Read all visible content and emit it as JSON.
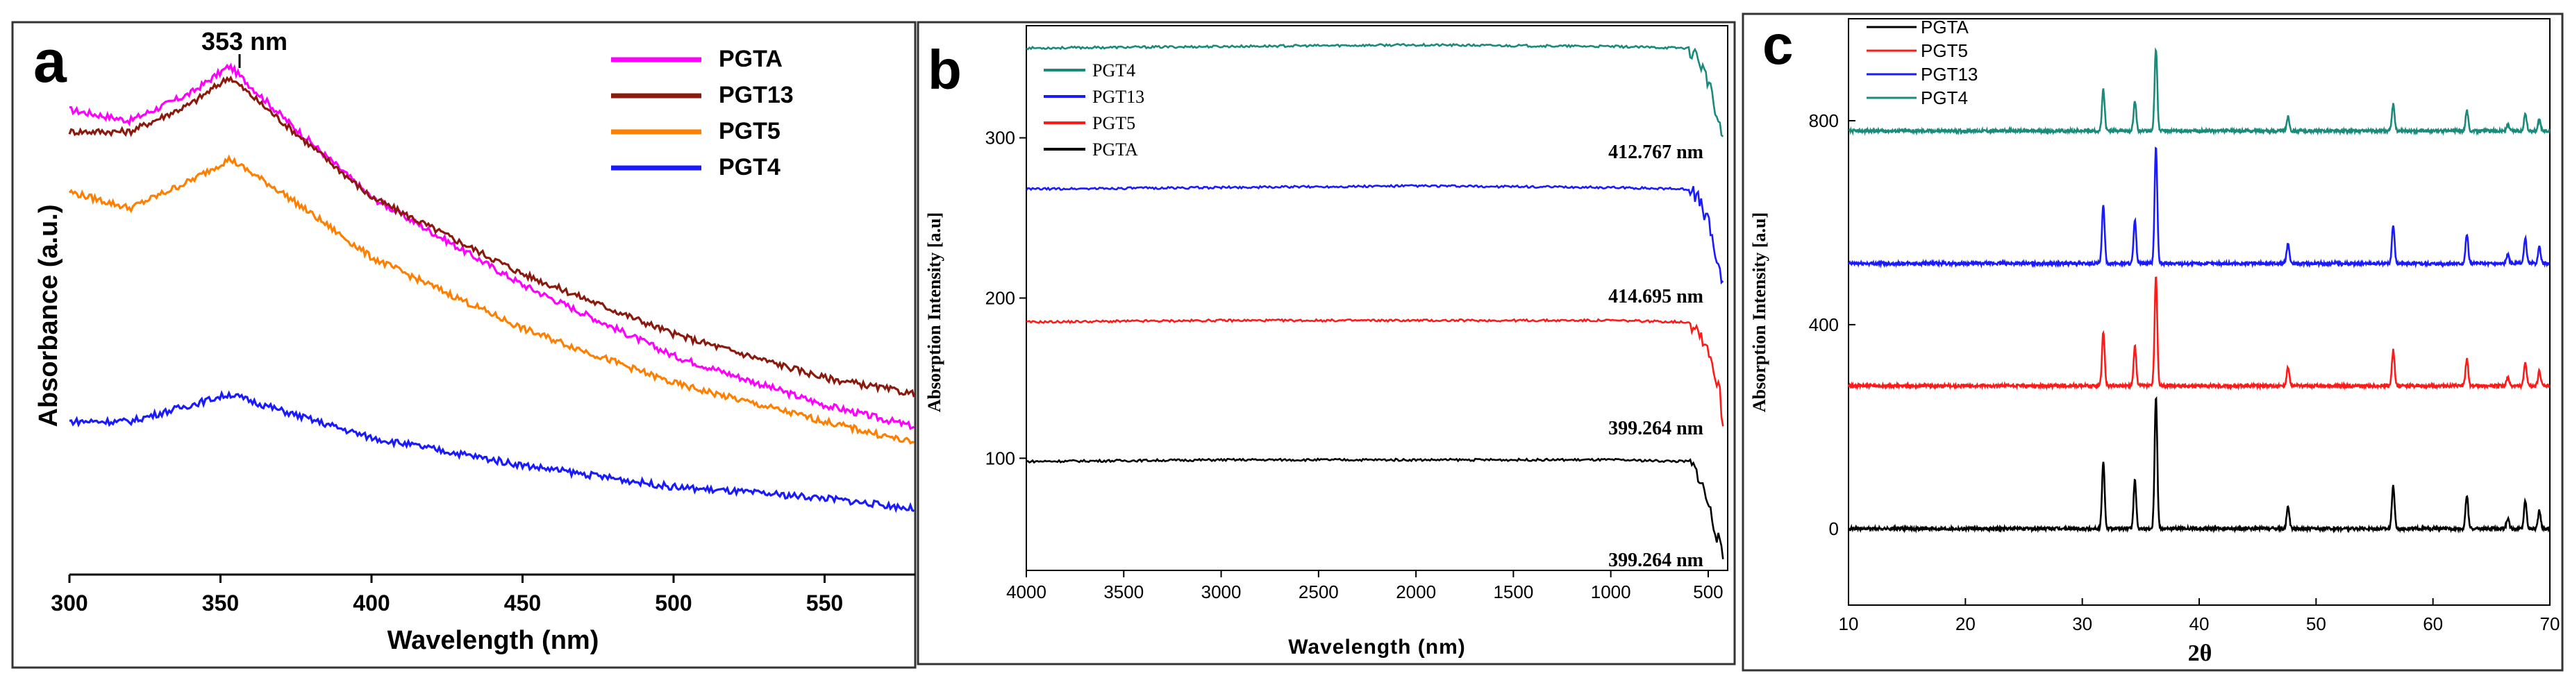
{
  "panels": {
    "a": {
      "letter": "a",
      "peak_annotation": "353 nm"
    },
    "b": {
      "letter": "b"
    },
    "c": {
      "letter": "c"
    }
  },
  "chart_data": [
    {
      "id": "a",
      "type": "line",
      "xlabel": "Wavelength (nm)",
      "ylabel": "Absorbance (a.u.)",
      "xlim": [
        300,
        580
      ],
      "xticks": [
        300,
        350,
        400,
        450,
        500,
        550
      ],
      "ylim": [
        0,
        1
      ],
      "yticks_shown": false,
      "grid": false,
      "legend_position": "top-right",
      "annotations": [
        {
          "text": "353 nm",
          "x": 353
        }
      ],
      "series": [
        {
          "name": "PGTA",
          "color": "#ff00ff",
          "x": [
            300,
            320,
            340,
            353,
            370,
            400,
            450,
            500,
            550,
            580
          ],
          "y": [
            0.85,
            0.83,
            0.88,
            0.93,
            0.84,
            0.69,
            0.53,
            0.4,
            0.31,
            0.27
          ]
        },
        {
          "name": "PGT13",
          "color": "#8b1a0e",
          "x": [
            300,
            320,
            340,
            353,
            370,
            400,
            450,
            500,
            550,
            580
          ],
          "y": [
            0.81,
            0.81,
            0.86,
            0.91,
            0.83,
            0.69,
            0.55,
            0.44,
            0.36,
            0.33
          ]
        },
        {
          "name": "PGT5",
          "color": "#ff7f00",
          "x": [
            300,
            320,
            340,
            353,
            370,
            400,
            450,
            500,
            550,
            580
          ],
          "y": [
            0.7,
            0.67,
            0.72,
            0.76,
            0.7,
            0.58,
            0.45,
            0.35,
            0.28,
            0.24
          ]
        },
        {
          "name": "PGT4",
          "color": "#1a1aff",
          "x": [
            300,
            320,
            340,
            353,
            370,
            400,
            450,
            500,
            550,
            580
          ],
          "y": [
            0.28,
            0.28,
            0.31,
            0.33,
            0.3,
            0.25,
            0.2,
            0.16,
            0.14,
            0.12
          ]
        }
      ]
    },
    {
      "id": "b",
      "type": "line",
      "xlabel": "Wavelength (nm)",
      "ylabel": "Absorption Intensity [a.u]",
      "xlim": [
        4000,
        400
      ],
      "xticks": [
        4000,
        3500,
        3000,
        2500,
        2000,
        1500,
        1000,
        500
      ],
      "ylim": [
        30,
        370
      ],
      "yticks": [
        100,
        200,
        300
      ],
      "grid": false,
      "legend_position": "top-left",
      "annotations": [
        {
          "text": "412.767 nm",
          "series": "PGT4"
        },
        {
          "text": "414.695 nm",
          "series": "PGT13"
        },
        {
          "text": "399.264 nm",
          "series": "PGT5"
        },
        {
          "text": "399.264 nm",
          "series": "PGTA"
        }
      ],
      "series": [
        {
          "name": "PGT4",
          "color": "#1a8a7a",
          "x": [
            4000,
            3000,
            2000,
            1000,
            600,
            550,
            500,
            470,
            440,
            420
          ],
          "y": [
            356,
            357,
            358,
            357,
            356,
            350,
            335,
            320,
            305,
            300
          ]
        },
        {
          "name": "PGT13",
          "color": "#1a1aff",
          "x": [
            4000,
            3000,
            2000,
            1000,
            600,
            550,
            500,
            470,
            440,
            420
          ],
          "y": [
            268,
            269,
            270,
            269,
            268,
            262,
            248,
            232,
            214,
            210
          ]
        },
        {
          "name": "PGT5",
          "color": "#ff1a1a",
          "x": [
            4000,
            3000,
            2000,
            1000,
            600,
            550,
            500,
            470,
            440,
            420
          ],
          "y": [
            185,
            186,
            186,
            186,
            185,
            180,
            168,
            155,
            140,
            115
          ]
        },
        {
          "name": "PGTA",
          "color": "#000000",
          "x": [
            4000,
            3000,
            2000,
            1000,
            600,
            550,
            500,
            470,
            440,
            420
          ],
          "y": [
            98,
            99,
            99,
            99,
            98,
            90,
            72,
            58,
            45,
            35
          ]
        }
      ]
    },
    {
      "id": "c",
      "type": "line",
      "xlabel": "2θ",
      "ylabel": "Absorption Intensity [a.u]",
      "xlim": [
        10,
        70
      ],
      "xticks": [
        10,
        20,
        30,
        40,
        50,
        60,
        70
      ],
      "ylim": [
        -150,
        1000
      ],
      "yticks": [
        0,
        400,
        800
      ],
      "grid": false,
      "legend_position": "top-left",
      "peaks_2theta": [
        31.8,
        34.5,
        36.3,
        47.6,
        56.6,
        62.9,
        66.4,
        67.9,
        69.1
      ],
      "peaks_height": [
        130,
        95,
        260,
        45,
        85,
        65,
        20,
        55,
        35
      ],
      "series": [
        {
          "name": "PGTA",
          "color": "#000000",
          "baseline": 0,
          "scale": 1.0
        },
        {
          "name": "PGT5",
          "color": "#ff1a1a",
          "baseline": 280,
          "scale": 0.82
        },
        {
          "name": "PGT13",
          "color": "#1a1aff",
          "baseline": 520,
          "scale": 0.88
        },
        {
          "name": "PGT4",
          "color": "#1a8a7a",
          "baseline": 780,
          "scale": 0.62
        }
      ]
    }
  ]
}
